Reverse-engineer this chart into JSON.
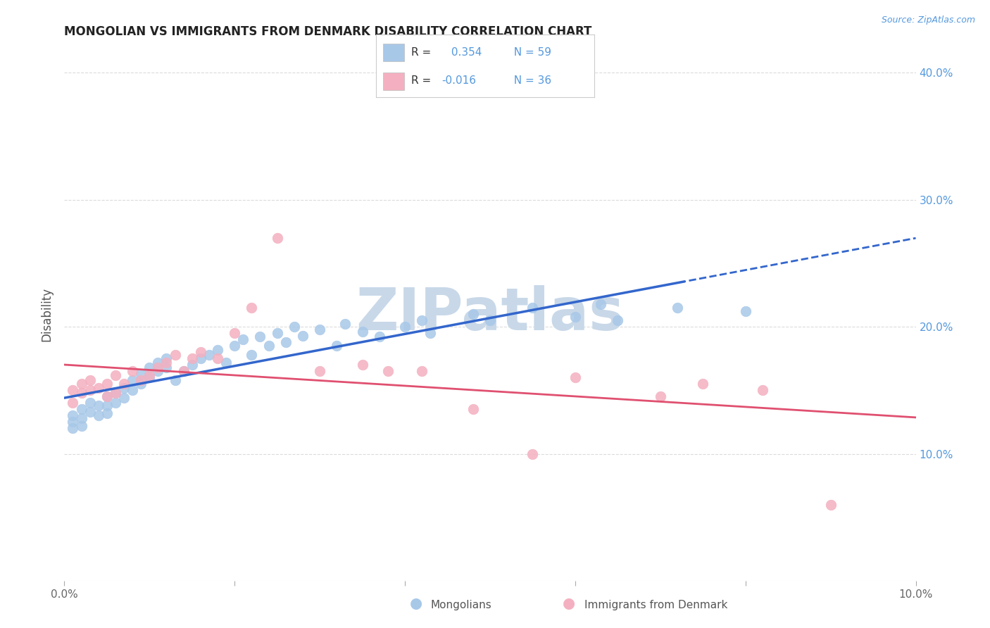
{
  "title": "MONGOLIAN VS IMMIGRANTS FROM DENMARK DISABILITY CORRELATION CHART",
  "source": "Source: ZipAtlas.com",
  "legend_label1": "Mongolians",
  "legend_label2": "Immigrants from Denmark",
  "ylabel": "Disability",
  "r_mongolian": 0.354,
  "n_mongolian": 59,
  "r_denmark": -0.016,
  "n_denmark": 36,
  "xlim": [
    0.0,
    0.1
  ],
  "ylim": [
    0.0,
    0.42
  ],
  "color_mongolian": "#a8c8e8",
  "color_denmark": "#f4b0c0",
  "line_color_mongolian": "#3366cc",
  "line_color_denmark": "#e05070",
  "watermark_text": "ZIPatlas",
  "watermark_color": "#c8d8e8",
  "background_color": "#ffffff",
  "grid_color": "#cccccc",
  "mongolian_x": [
    0.001,
    0.001,
    0.001,
    0.002,
    0.002,
    0.002,
    0.003,
    0.003,
    0.004,
    0.004,
    0.005,
    0.005,
    0.005,
    0.006,
    0.006,
    0.007,
    0.007,
    0.008,
    0.008,
    0.009,
    0.009,
    0.01,
    0.01,
    0.011,
    0.011,
    0.012,
    0.012,
    0.013,
    0.014,
    0.015,
    0.016,
    0.017,
    0.018,
    0.019,
    0.02,
    0.021,
    0.022,
    0.023,
    0.024,
    0.025,
    0.026,
    0.027,
    0.028,
    0.03,
    0.032,
    0.033,
    0.035,
    0.037,
    0.04,
    0.042,
    0.043,
    0.048,
    0.05,
    0.055,
    0.06,
    0.063,
    0.065,
    0.072,
    0.08
  ],
  "mongolian_y": [
    0.13,
    0.125,
    0.12,
    0.135,
    0.128,
    0.122,
    0.14,
    0.133,
    0.138,
    0.13,
    0.145,
    0.138,
    0.132,
    0.148,
    0.14,
    0.152,
    0.144,
    0.158,
    0.15,
    0.163,
    0.155,
    0.168,
    0.16,
    0.172,
    0.165,
    0.175,
    0.168,
    0.158,
    0.165,
    0.17,
    0.175,
    0.178,
    0.182,
    0.172,
    0.185,
    0.19,
    0.178,
    0.192,
    0.185,
    0.195,
    0.188,
    0.2,
    0.193,
    0.198,
    0.185,
    0.202,
    0.196,
    0.192,
    0.2,
    0.205,
    0.195,
    0.21,
    0.205,
    0.215,
    0.208,
    0.218,
    0.205,
    0.215,
    0.212
  ],
  "denmark_x": [
    0.001,
    0.001,
    0.002,
    0.002,
    0.003,
    0.003,
    0.004,
    0.005,
    0.005,
    0.006,
    0.006,
    0.007,
    0.008,
    0.009,
    0.01,
    0.011,
    0.012,
    0.013,
    0.014,
    0.015,
    0.016,
    0.018,
    0.02,
    0.022,
    0.025,
    0.03,
    0.035,
    0.038,
    0.042,
    0.048,
    0.055,
    0.06,
    0.07,
    0.075,
    0.082,
    0.09
  ],
  "denmark_y": [
    0.15,
    0.14,
    0.155,
    0.148,
    0.158,
    0.15,
    0.152,
    0.145,
    0.155,
    0.148,
    0.162,
    0.155,
    0.165,
    0.158,
    0.162,
    0.168,
    0.172,
    0.178,
    0.165,
    0.175,
    0.18,
    0.175,
    0.195,
    0.215,
    0.27,
    0.165,
    0.17,
    0.165,
    0.165,
    0.135,
    0.1,
    0.16,
    0.145,
    0.155,
    0.15,
    0.06
  ]
}
